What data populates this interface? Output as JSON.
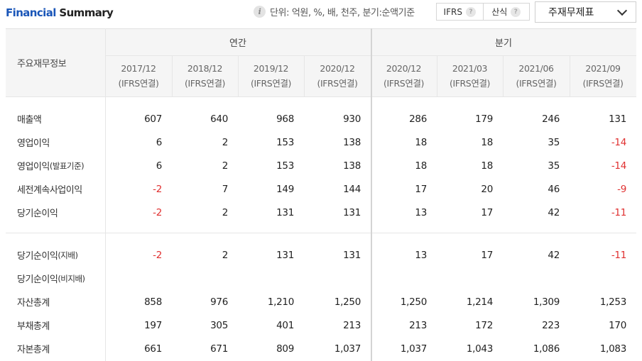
{
  "header": {
    "title_part1": "Financial",
    "title_part2": "Summary",
    "unit_text": "단위: 억원, %, 배, 천주, 분기:순액기준",
    "toggle_ifrs": "IFRS",
    "toggle_calc": "산식",
    "select_value": "주재무제표"
  },
  "table": {
    "corner_label": "주요재무정보",
    "group_annual": "연간",
    "group_quarter": "분기",
    "periods": [
      {
        "date": "2017/12",
        "basis": "(IFRS연결)"
      },
      {
        "date": "2018/12",
        "basis": "(IFRS연결)"
      },
      {
        "date": "2019/12",
        "basis": "(IFRS연결)"
      },
      {
        "date": "2020/12",
        "basis": "(IFRS연결)"
      },
      {
        "date": "2020/12",
        "basis": "(IFRS연결)"
      },
      {
        "date": "2021/03",
        "basis": "(IFRS연결)"
      },
      {
        "date": "2021/06",
        "basis": "(IFRS연결)"
      },
      {
        "date": "2021/09",
        "basis": "(IFRS연결)"
      }
    ],
    "rows": [
      {
        "label": "매출액",
        "label_sub": "",
        "values": [
          "607",
          "640",
          "968",
          "930",
          "286",
          "179",
          "246",
          "131"
        ]
      },
      {
        "label": "영업이익",
        "label_sub": "",
        "values": [
          "6",
          "2",
          "153",
          "138",
          "18",
          "18",
          "35",
          "-14"
        ]
      },
      {
        "label": "영업이익",
        "label_sub": "(발표기준)",
        "values": [
          "6",
          "2",
          "153",
          "138",
          "18",
          "18",
          "35",
          "-14"
        ]
      },
      {
        "label": "세전계속사업이익",
        "label_sub": "",
        "values": [
          "-2",
          "7",
          "149",
          "144",
          "17",
          "20",
          "46",
          "-9"
        ]
      },
      {
        "label": "당기순이익",
        "label_sub": "",
        "values": [
          "-2",
          "2",
          "131",
          "131",
          "13",
          "17",
          "42",
          "-11"
        ]
      },
      {
        "label": "당기순이익",
        "label_sub": "(지배)",
        "values": [
          "-2",
          "2",
          "131",
          "131",
          "13",
          "17",
          "42",
          "-11"
        ]
      },
      {
        "label": "당기순이익",
        "label_sub": "(비지배)",
        "values": [
          "",
          "",
          "",
          "",
          "",
          "",
          "",
          ""
        ]
      },
      {
        "label": "자산총계",
        "label_sub": "",
        "values": [
          "858",
          "976",
          "1,210",
          "1,250",
          "1,250",
          "1,214",
          "1,309",
          "1,253"
        ]
      },
      {
        "label": "부채총계",
        "label_sub": "",
        "values": [
          "197",
          "305",
          "401",
          "213",
          "213",
          "172",
          "223",
          "170"
        ]
      },
      {
        "label": "자본총계",
        "label_sub": "",
        "values": [
          "661",
          "671",
          "809",
          "1,037",
          "1,037",
          "1,043",
          "1,086",
          "1,083"
        ]
      }
    ]
  },
  "colors": {
    "title_blue": "#1a56b8",
    "negative_red": "#e03030"
  }
}
